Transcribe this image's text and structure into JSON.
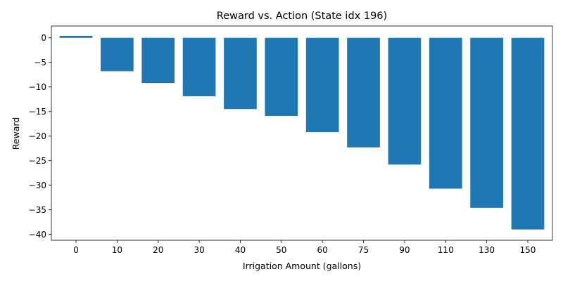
{
  "chart_data": {
    "type": "bar",
    "title": "Reward vs. Action (State idx 196)",
    "xlabel": "Irrigation Amount (gallons)",
    "ylabel": "Reward",
    "categories": [
      "0",
      "10",
      "20",
      "30",
      "40",
      "50",
      "60",
      "75",
      "90",
      "110",
      "130",
      "150"
    ],
    "values": [
      0.4,
      -6.8,
      -9.2,
      -11.9,
      -14.5,
      -15.9,
      -19.2,
      -22.3,
      -25.8,
      -30.7,
      -34.6,
      -39.0
    ],
    "ylim": [
      -41.2,
      2.4
    ],
    "yticks": [
      0,
      -5,
      -10,
      -15,
      -20,
      -25,
      -30,
      -35,
      -40
    ],
    "grid": false,
    "bar_color": "#1f77b4"
  }
}
